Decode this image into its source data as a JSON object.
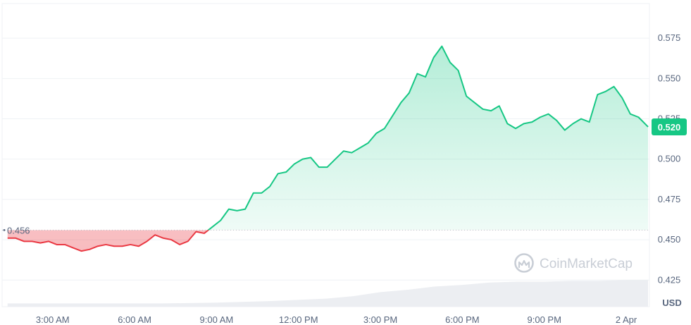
{
  "chart_data": {
    "type": "area",
    "unit_label": "USD",
    "watermark": "CoinMarketCap",
    "reference": {
      "value": 0.456,
      "label": "0.456"
    },
    "current": {
      "value": 0.52,
      "label": "0.520"
    },
    "ylim": [
      0.4085,
      0.5965
    ],
    "y_ticks": [
      "0.575",
      "0.550",
      "0.525",
      "0.500",
      "0.475",
      "0.450",
      "0.425"
    ],
    "y_tick_values": [
      0.575,
      0.55,
      0.525,
      0.5,
      0.475,
      0.45,
      0.425
    ],
    "x_ticks": [
      "3:00 AM",
      "6:00 AM",
      "9:00 AM",
      "12:00 PM",
      "3:00 PM",
      "6:00 PM",
      "9:00 PM",
      "2 Apr"
    ],
    "x_tick_hours": [
      3,
      6,
      9,
      12,
      15,
      18,
      21,
      24
    ],
    "xlim": [
      1.15,
      24.85
    ],
    "colors": {
      "up": "#16c784",
      "down": "#ea3943",
      "badge": "#16c784"
    },
    "series": [
      {
        "x": [
          1.35,
          1.65,
          1.95,
          2.25,
          2.55,
          2.85,
          3.15,
          3.45,
          3.75,
          4.05,
          4.35,
          4.65,
          4.95,
          5.25,
          5.55,
          5.85,
          6.15,
          6.45,
          6.75,
          7.05,
          7.35,
          7.65,
          7.95,
          8.25,
          8.55,
          8.85,
          9.15,
          9.45,
          9.75,
          10.05,
          10.35,
          10.65,
          10.95,
          11.25,
          11.55,
          11.85,
          12.15,
          12.45,
          12.75,
          13.05,
          13.35,
          13.65,
          13.95,
          14.25,
          14.55,
          14.85,
          15.15,
          15.45,
          15.75,
          16.05,
          16.35,
          16.65,
          16.95,
          17.25,
          17.55,
          17.85,
          18.15,
          18.45,
          18.75,
          19.05,
          19.35,
          19.65,
          19.95,
          20.25,
          20.55,
          20.85,
          21.15,
          21.45,
          21.75,
          22.05,
          22.35,
          22.65,
          22.95,
          23.25,
          23.55,
          23.85,
          24.15,
          24.45,
          24.8
        ],
        "y": [
          0.451,
          0.451,
          0.449,
          0.449,
          0.448,
          0.449,
          0.447,
          0.447,
          0.445,
          0.443,
          0.444,
          0.446,
          0.447,
          0.446,
          0.446,
          0.447,
          0.446,
          0.449,
          0.453,
          0.451,
          0.45,
          0.447,
          0.449,
          0.455,
          0.454,
          0.458,
          0.462,
          0.469,
          0.468,
          0.469,
          0.479,
          0.479,
          0.483,
          0.491,
          0.492,
          0.497,
          0.5,
          0.501,
          0.495,
          0.495,
          0.5,
          0.505,
          0.504,
          0.507,
          0.51,
          0.516,
          0.519,
          0.527,
          0.535,
          0.541,
          0.553,
          0.551,
          0.563,
          0.57,
          0.56,
          0.555,
          0.539,
          0.535,
          0.531,
          0.53,
          0.533,
          0.522,
          0.519,
          0.522,
          0.523,
          0.526,
          0.528,
          0.524,
          0.518,
          0.522,
          0.525,
          0.523,
          0.54,
          0.542,
          0.545,
          0.538,
          0.528,
          0.526,
          0.52
        ]
      }
    ],
    "volume": {
      "x": [
        1.35,
        3.0,
        5.0,
        7.0,
        9.0,
        11.0,
        13.0,
        14.0,
        15.0,
        16.0,
        17.0,
        18.0,
        19.0,
        20.0,
        21.0,
        22.0,
        23.0,
        24.0,
        24.8
      ],
      "y": [
        0.4105,
        0.4105,
        0.4105,
        0.4105,
        0.411,
        0.412,
        0.4135,
        0.415,
        0.4175,
        0.419,
        0.421,
        0.422,
        0.4235,
        0.424,
        0.424,
        0.4245,
        0.4245,
        0.425,
        0.425
      ]
    }
  }
}
